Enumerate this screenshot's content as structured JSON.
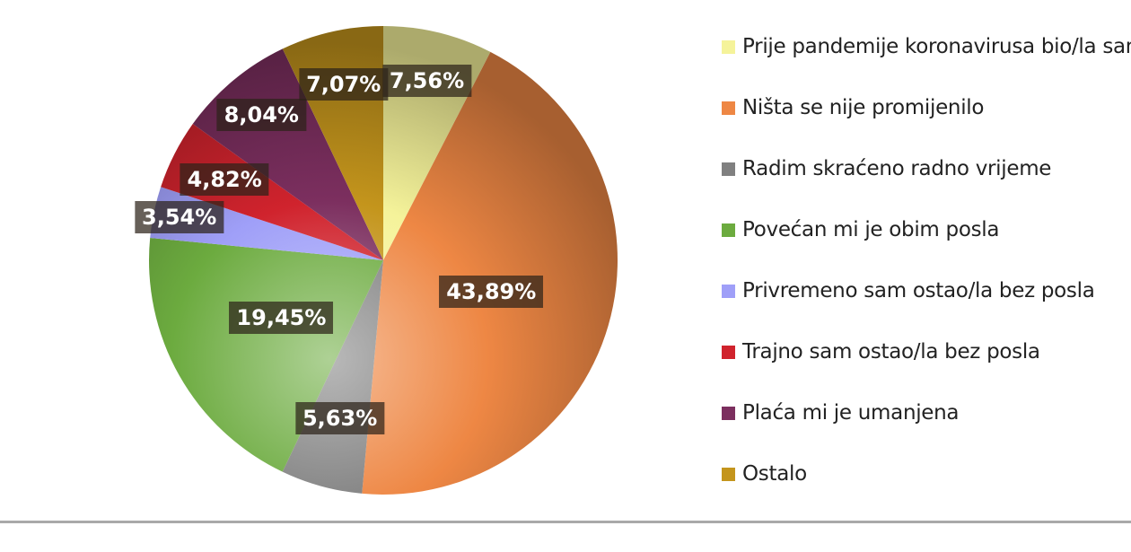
{
  "chart_data": {
    "type": "pie",
    "start": "top",
    "direction": "clockwise",
    "legend_position": "right",
    "categories": [
      "Prije pandemije koronavirusa bio/la sam be",
      "Ništa se nije promijenilo",
      "Radim skraćeno radno vrijeme",
      "Povećan mi je obim posla",
      "Privremeno sam ostao/la bez posla",
      "Trajno sam ostao/la bez posla",
      "Plaća mi je umanjena",
      "Ostalo"
    ],
    "values": [
      7.56,
      43.89,
      5.63,
      19.45,
      3.54,
      4.82,
      8.04,
      7.07
    ],
    "data_labels": [
      "7,56%",
      "43,89%",
      "5,63%",
      "19,45%",
      "3,54%",
      "4,82%",
      "8,04%",
      "7,07%"
    ],
    "colors": [
      "#f5f39a",
      "#ee8744",
      "#808080",
      "#6cab3f",
      "#9f9ff8",
      "#d0232d",
      "#7c2f5f",
      "#c4951c"
    ]
  }
}
